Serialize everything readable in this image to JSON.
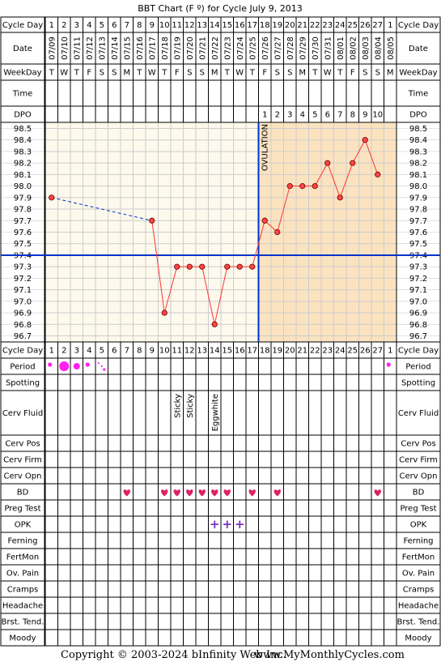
{
  "title": "BBT Chart (F º) for Cycle July 9, 2013",
  "footer": {
    "copyright": "Copyright © 2003-2024 bInfinity Web Inc.",
    "site": "www.MyMonthlyCycles.com"
  },
  "row_labels": {
    "cycle_day": "Cycle Day",
    "date": "Date",
    "weekday": "WeekDay",
    "time": "Time",
    "dpo": "DPO",
    "period": "Period",
    "spotting": "Spotting",
    "cerv_fluid": "Cerv Fluid",
    "cerv_pos": "Cerv Pos",
    "cerv_firm": "Cerv Firm",
    "cerv_opn": "Cerv Opn",
    "bd": "BD",
    "preg_test": "Preg Test",
    "opk": "OPK",
    "ferning": "Ferning",
    "fertmon": "FertMon",
    "ov_pain": "Ov. Pain",
    "cramps": "Cramps",
    "headache": "Headache",
    "brst_tend": "Brst. Tend.",
    "moody": "Moody"
  },
  "colors": {
    "pre_ovulation_bg": "#fdf9ec",
    "post_ovulation_bg": "#fbe3c0",
    "grid": "#cccccc",
    "temp_line": "#ff3333",
    "dot_fill": "#ff4444",
    "coverline": "#0033cc",
    "ovulation_line": "#0033cc",
    "period": "#ff22ee",
    "heart": "#dd2266",
    "opk": "#7733bb"
  },
  "chart_data": {
    "type": "line",
    "cycle_days": [
      "1",
      "2",
      "3",
      "4",
      "5",
      "6",
      "7",
      "8",
      "9",
      "10",
      "11",
      "12",
      "13",
      "14",
      "15",
      "16",
      "17",
      "18",
      "19",
      "20",
      "21",
      "22",
      "23",
      "24",
      "25",
      "26",
      "27",
      "1"
    ],
    "dates": [
      "07/09",
      "07/10",
      "07/11",
      "07/12",
      "07/13",
      "07/14",
      "07/15",
      "07/16",
      "07/17",
      "07/18",
      "07/19",
      "07/20",
      "07/21",
      "07/22",
      "07/23",
      "07/24",
      "07/25",
      "07/26",
      "07/27",
      "07/28",
      "07/29",
      "07/30",
      "07/31",
      "08/01",
      "08/02",
      "08/03",
      "08/04",
      "08/05"
    ],
    "weekdays": [
      "T",
      "W",
      "T",
      "F",
      "S",
      "S",
      "M",
      "T",
      "W",
      "T",
      "F",
      "S",
      "S",
      "M",
      "T",
      "W",
      "T",
      "F",
      "S",
      "S",
      "M",
      "T",
      "W",
      "T",
      "F",
      "S",
      "S",
      "M"
    ],
    "dpo": [
      "",
      "",
      "",
      "",
      "",
      "",
      "",
      "",
      "",
      "",
      "",
      "",
      "",
      "",
      "",
      "",
      "",
      "1",
      "2",
      "3",
      "4",
      "5",
      "6",
      "7",
      "8",
      "9",
      "10",
      ""
    ],
    "temperatures": [
      97.9,
      null,
      null,
      null,
      null,
      null,
      null,
      null,
      97.7,
      96.9,
      97.3,
      97.3,
      97.3,
      96.8,
      97.3,
      97.3,
      97.3,
      97.7,
      97.6,
      98.0,
      98.0,
      98.0,
      98.2,
      97.9,
      98.2,
      98.4,
      98.1,
      null
    ],
    "y_ticks": [
      "98.5",
      "98.4",
      "98.3",
      "98.2",
      "98.1",
      "98.0",
      "97.9",
      "97.8",
      "97.7",
      "97.6",
      "97.5",
      "97.4",
      "97.3",
      "97.2",
      "97.1",
      "97.0",
      "96.9",
      "96.8",
      "96.7"
    ],
    "ylim": [
      96.7,
      98.5
    ],
    "coverline": 97.4,
    "ovulation_after_day_index": 16,
    "ovulation_label": "OVULATION",
    "dashed_gap": [
      0,
      8
    ],
    "period": [
      "small",
      "large",
      "medium",
      "small",
      "spotting",
      "",
      "",
      "",
      "",
      "",
      "",
      "",
      "",
      "",
      "",
      "",
      "",
      "",
      "",
      "",
      "",
      "",
      "",
      "",
      "",
      "",
      "",
      "small"
    ],
    "cerv_fluid": [
      "",
      "",
      "",
      "",
      "",
      "",
      "",
      "",
      "",
      "",
      "Sticky",
      "Sticky",
      "",
      "Eggwhite",
      "",
      "",
      "",
      "",
      "",
      "",
      "",
      "",
      "",
      "",
      "",
      "",
      "",
      ""
    ],
    "bd": [
      false,
      false,
      false,
      false,
      false,
      false,
      true,
      false,
      false,
      true,
      true,
      true,
      true,
      true,
      true,
      false,
      true,
      false,
      true,
      false,
      false,
      false,
      false,
      false,
      false,
      false,
      true,
      false
    ],
    "opk": [
      "",
      "",
      "",
      "",
      "",
      "",
      "",
      "",
      "",
      "",
      "",
      "",
      "",
      "+",
      "+",
      "+",
      "",
      "",
      "",
      "",
      "",
      "",
      "",
      "",
      "",
      "",
      "",
      ""
    ]
  }
}
